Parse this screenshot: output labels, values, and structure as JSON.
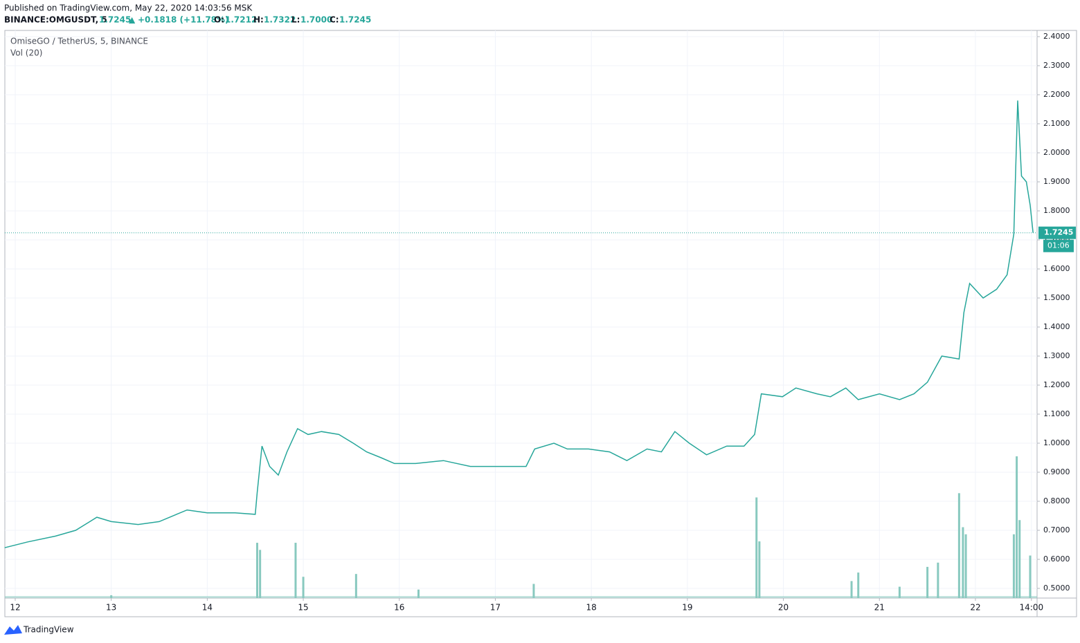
{
  "header": {
    "published": "Published on TradingView.com, May 22, 2020 14:03:56 MSK",
    "symbol": "BINANCE:OMGUSDT, 5",
    "price": "1.7245",
    "arrow": "▲",
    "change": "+0.1818 (+11.78%)",
    "o_label": "O:",
    "o": "1.7212",
    "h_label": "H:",
    "h": "1.7322",
    "l_label": "L:",
    "l": "1.7000",
    "c_label": "C:",
    "c": "1.7245"
  },
  "chart_data": {
    "type": "line",
    "legend_title": "OmiseGO / TetherUS, 5, BINANCE",
    "volume_title": "Vol (20)",
    "x": [
      11.89,
      12.13,
      12.42,
      12.63,
      12.85,
      13.0,
      13.28,
      13.5,
      13.79,
      14.0,
      14.29,
      14.5,
      14.52,
      14.57,
      14.65,
      14.74,
      14.83,
      14.94,
      15.05,
      15.19,
      15.37,
      15.52,
      15.66,
      15.81,
      15.95,
      16.17,
      16.46,
      16.74,
      17.03,
      17.32,
      17.41,
      17.61,
      17.75,
      17.97,
      18.19,
      18.37,
      18.58,
      18.73,
      18.87,
      19.02,
      19.2,
      19.41,
      19.59,
      19.7,
      19.77,
      19.99,
      20.13,
      20.35,
      20.49,
      20.65,
      20.78,
      21.0,
      21.21,
      21.36,
      21.5,
      21.65,
      21.83,
      21.88,
      21.94,
      22.08,
      22.22,
      22.33,
      22.4,
      22.44,
      22.48,
      22.53,
      22.57,
      22.6
    ],
    "series": [
      {
        "name": "OMGUSDT",
        "color": "#26a69a",
        "values": [
          0.64,
          0.66,
          0.68,
          0.7,
          0.745,
          0.73,
          0.72,
          0.73,
          0.77,
          0.76,
          0.76,
          0.755,
          0.83,
          0.99,
          0.92,
          0.89,
          0.97,
          1.05,
          1.03,
          1.04,
          1.03,
          1.0,
          0.97,
          0.95,
          0.93,
          0.93,
          0.94,
          0.92,
          0.92,
          0.92,
          0.98,
          1.0,
          0.98,
          0.98,
          0.97,
          0.94,
          0.98,
          0.97,
          1.04,
          1.0,
          0.96,
          0.99,
          0.99,
          1.03,
          1.17,
          1.16,
          1.19,
          1.17,
          1.16,
          1.19,
          1.15,
          1.17,
          1.15,
          1.17,
          1.21,
          1.3,
          1.29,
          1.45,
          1.55,
          1.5,
          1.53,
          1.58,
          1.72,
          2.18,
          1.92,
          1.9,
          1.82,
          1.7245
        ]
      }
    ],
    "volume": {
      "color": "#88c9bf",
      "x": [
        13.0,
        14.52,
        14.55,
        14.92,
        15.0,
        15.55,
        16.2,
        17.4,
        19.72,
        19.75,
        20.71,
        20.78,
        21.21,
        21.5,
        21.61,
        21.83,
        21.87,
        21.9,
        22.4,
        22.43,
        22.46,
        22.57
      ],
      "values": [
        2,
        39,
        34,
        39,
        15,
        17,
        6,
        10,
        71,
        40,
        12,
        18,
        8,
        22,
        25,
        74,
        50,
        45,
        45,
        100,
        55,
        30
      ]
    },
    "vlim": [
      0,
      100
    ],
    "xlim": [
      11.892,
      22.642
    ],
    "ylim": [
      0.4667,
      2.4214
    ],
    "xticks": [
      12,
      13,
      14,
      15,
      16,
      17,
      18,
      19,
      20,
      21,
      22,
      {
        "value": 22.5833,
        "label": "14:00"
      }
    ],
    "yticks": [
      {
        "value": 0.5,
        "label": "0.5000"
      },
      {
        "value": 0.6,
        "label": "0.6000"
      },
      {
        "value": 0.7,
        "label": "0.7000"
      },
      {
        "value": 0.8,
        "label": "0.8000"
      },
      {
        "value": 0.9,
        "label": "0.9000"
      },
      {
        "value": 1.0,
        "label": "1.0000"
      },
      {
        "value": 1.1,
        "label": "1.1000"
      },
      {
        "value": 1.2,
        "label": "1.2000"
      },
      {
        "value": 1.3,
        "label": "1.3000"
      },
      {
        "value": 1.4,
        "label": "1.4000"
      },
      {
        "value": 1.5,
        "label": "1.5000"
      },
      {
        "value": 1.6,
        "label": "1.6000"
      },
      {
        "value": 1.7,
        "label": "1.7000"
      },
      {
        "value": 1.8,
        "label": "1.8000"
      },
      {
        "value": 1.9,
        "label": "1.9000"
      },
      {
        "value": 2.0,
        "label": "2.0000"
      },
      {
        "value": 2.1,
        "label": "2.1000"
      },
      {
        "value": 2.2,
        "label": "2.2000"
      },
      {
        "value": 2.3,
        "label": "2.3000"
      },
      {
        "value": 2.4,
        "label": "2.4000"
      }
    ],
    "last_price": {
      "value": 1.7245,
      "label": "1.7245",
      "countdown": "01:06",
      "color": "#26a69a"
    },
    "grid": true
  },
  "footer": {
    "brand": "TradingView"
  }
}
